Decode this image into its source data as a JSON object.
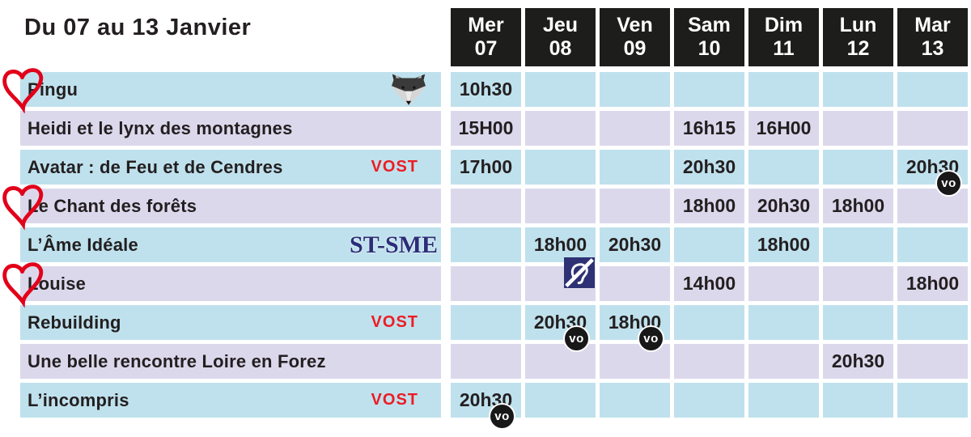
{
  "page": {
    "title": "Du 07 au 13 Janvier"
  },
  "labels": {
    "vo": "VO"
  },
  "colors": {
    "row_blue": "#bfe1ed",
    "row_lavender": "#dcd8ec",
    "day_header_bg": "#1d1d1b",
    "text": "#231f20",
    "vost_red": "#ed1c24",
    "heart_red": "#e2001a",
    "stsme_navy": "#2b2d77",
    "hearing_icon_bg": "#2e3274",
    "vo_badge_bg": "#181818"
  },
  "days": [
    {
      "name": "Mer",
      "num": "07"
    },
    {
      "name": "Jeu",
      "num": "08"
    },
    {
      "name": "Ven",
      "num": "09"
    },
    {
      "name": "Sam",
      "num": "10"
    },
    {
      "name": "Dim",
      "num": "11"
    },
    {
      "name": "Lun",
      "num": "12"
    },
    {
      "name": "Mar",
      "num": "13"
    }
  ],
  "movies": [
    {
      "title": "Pingu",
      "heart": true,
      "fox_icon": true,
      "tag": "",
      "tag_type": "",
      "times": [
        {
          "time": "10h30"
        },
        null,
        null,
        null,
        null,
        null,
        null
      ]
    },
    {
      "title": "Heidi et le lynx des montagnes",
      "heart": false,
      "fox_icon": false,
      "tag": "",
      "tag_type": "",
      "times": [
        {
          "time": "15H00"
        },
        null,
        null,
        {
          "time": "16h15"
        },
        {
          "time": "16H00"
        },
        null,
        null
      ]
    },
    {
      "title": "Avatar : de Feu et de Cendres",
      "heart": false,
      "fox_icon": false,
      "tag": "VOST",
      "tag_type": "vost",
      "times": [
        {
          "time": "17h00"
        },
        null,
        null,
        {
          "time": "20h30"
        },
        null,
        null,
        {
          "time": "20h30",
          "vo": true
        }
      ]
    },
    {
      "title": "Le Chant des forêts",
      "heart": true,
      "fox_icon": false,
      "tag": "",
      "tag_type": "",
      "times": [
        null,
        null,
        null,
        {
          "time": "18h00"
        },
        {
          "time": "20h30"
        },
        {
          "time": "18h00"
        },
        null
      ]
    },
    {
      "title": "L’Âme Idéale",
      "heart": false,
      "fox_icon": false,
      "tag": "ST-SME",
      "tag_type": "stsme",
      "times": [
        null,
        {
          "time": "18h00",
          "hearing": true
        },
        {
          "time": "20h30"
        },
        null,
        {
          "time": "18h00"
        },
        null,
        null
      ]
    },
    {
      "title": "Louise",
      "heart": true,
      "fox_icon": false,
      "tag": "",
      "tag_type": "",
      "times": [
        null,
        null,
        null,
        {
          "time": "14h00"
        },
        null,
        null,
        {
          "time": "18h00"
        }
      ]
    },
    {
      "title": "Rebuilding",
      "heart": false,
      "fox_icon": false,
      "tag": "VOST",
      "tag_type": "vost",
      "times": [
        null,
        {
          "time": "20h30",
          "vo": true
        },
        {
          "time": "18h00",
          "vo": true
        },
        null,
        null,
        null,
        null
      ]
    },
    {
      "title": "Une belle rencontre Loire en Forez",
      "heart": false,
      "fox_icon": false,
      "tag": "",
      "tag_type": "",
      "times": [
        null,
        null,
        null,
        null,
        null,
        {
          "time": "20h30"
        },
        null
      ]
    },
    {
      "title": "L’incompris",
      "heart": false,
      "fox_icon": false,
      "tag": "VOST",
      "tag_type": "vost",
      "times": [
        {
          "time": "20h30",
          "vo": true
        },
        null,
        null,
        null,
        null,
        null,
        null
      ]
    }
  ]
}
